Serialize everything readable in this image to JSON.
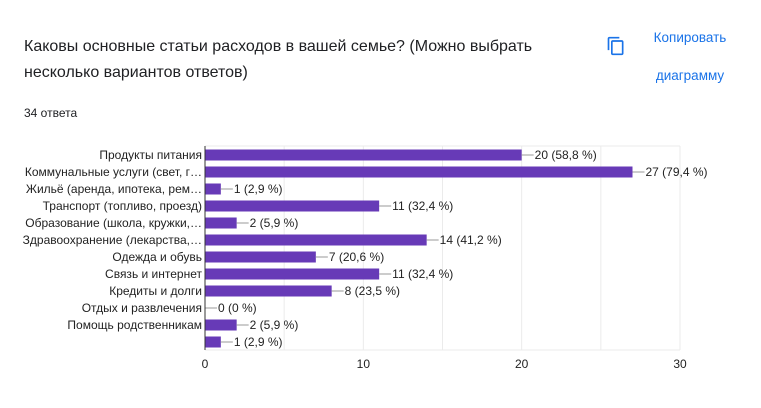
{
  "header": {
    "title": "Каковы основные статьи расходов в вашей семье? (Можно выбрать несколько вариантов ответов)",
    "response_count": "34 ответа",
    "copy_label_line1": "Копировать",
    "copy_label_line2": "диаграмму",
    "copy_icon": "copy-icon"
  },
  "colors": {
    "bar": "#673ab7",
    "accent": "#1a73e8",
    "grid": "#ebebeb"
  },
  "chart_data": {
    "type": "bar",
    "orientation": "horizontal",
    "categories": [
      "Продукты питания",
      "Коммунальные услуги (свет, г…",
      "Жильё (аренда, ипотека, рем…",
      "Транспорт (топливо, проезд)",
      "Образование (школа, кружки,…",
      "Здравоохранение (лекарства,…",
      "Одежда и обувь",
      "Связь и интернет",
      "Кредиты и долги",
      "Отдых и развлечения",
      "Помощь родственникам",
      ""
    ],
    "values": [
      20,
      27,
      1,
      11,
      2,
      14,
      7,
      11,
      8,
      0,
      2,
      1
    ],
    "data_labels": [
      "20 (58,8 %)",
      "27 (79,4 %)",
      "1 (2,9 %)",
      "11 (32,4 %)",
      "2 (5,9 %)",
      "14 (41,2 %)",
      "7 (20,6 %)",
      "11 (32,4 %)",
      "8 (23,5 %)",
      "0 (0 %)",
      "2 (5,9 %)",
      "1 (2,9 %)"
    ],
    "xlim": [
      0,
      30
    ],
    "xticks": [
      "0",
      "10",
      "20",
      "30"
    ],
    "minor_grid_step": 5,
    "grid": true,
    "title": "",
    "xlabel": "",
    "ylabel": ""
  }
}
